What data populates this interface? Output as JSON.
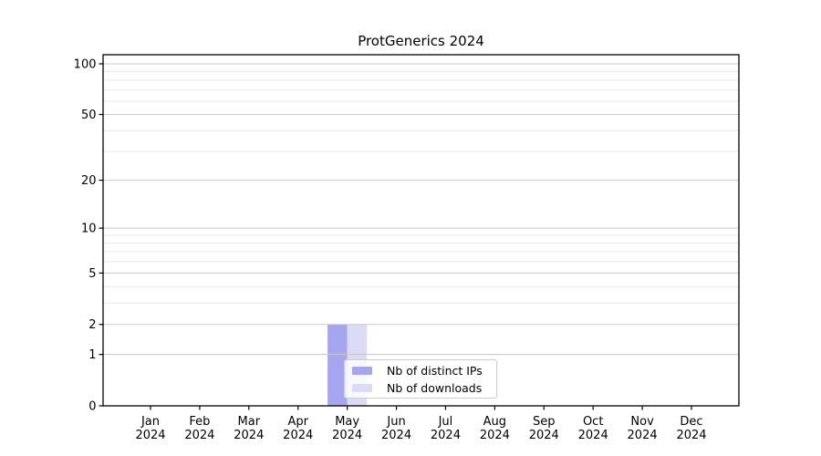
{
  "chart_data": {
    "type": "bar",
    "title": "ProtGenerics 2024",
    "categories": [
      "Jan",
      "Feb",
      "Mar",
      "Apr",
      "May",
      "Jun",
      "Jul",
      "Aug",
      "Sep",
      "Oct",
      "Nov",
      "Dec"
    ],
    "x_tick_year": "2024",
    "series": [
      {
        "name": "Nb of distinct IPs",
        "color": "#a5a5f0",
        "values": [
          0,
          0,
          0,
          0,
          2,
          0,
          0,
          0,
          0,
          0,
          0,
          0
        ]
      },
      {
        "name": "Nb of downloads",
        "color": "#dbdbf8",
        "values": [
          0,
          0,
          0,
          0,
          2,
          0,
          0,
          0,
          0,
          0,
          0,
          0
        ]
      }
    ],
    "yscale": "log1p",
    "ylim": [
      0,
      113
    ],
    "yticks": [
      0,
      1,
      2,
      5,
      10,
      20,
      50,
      100
    ],
    "yticks_minor": [
      3,
      4,
      6,
      7,
      8,
      9,
      30,
      40,
      60,
      70,
      80,
      90
    ],
    "grid": true,
    "legend_position": "lower-center"
  }
}
